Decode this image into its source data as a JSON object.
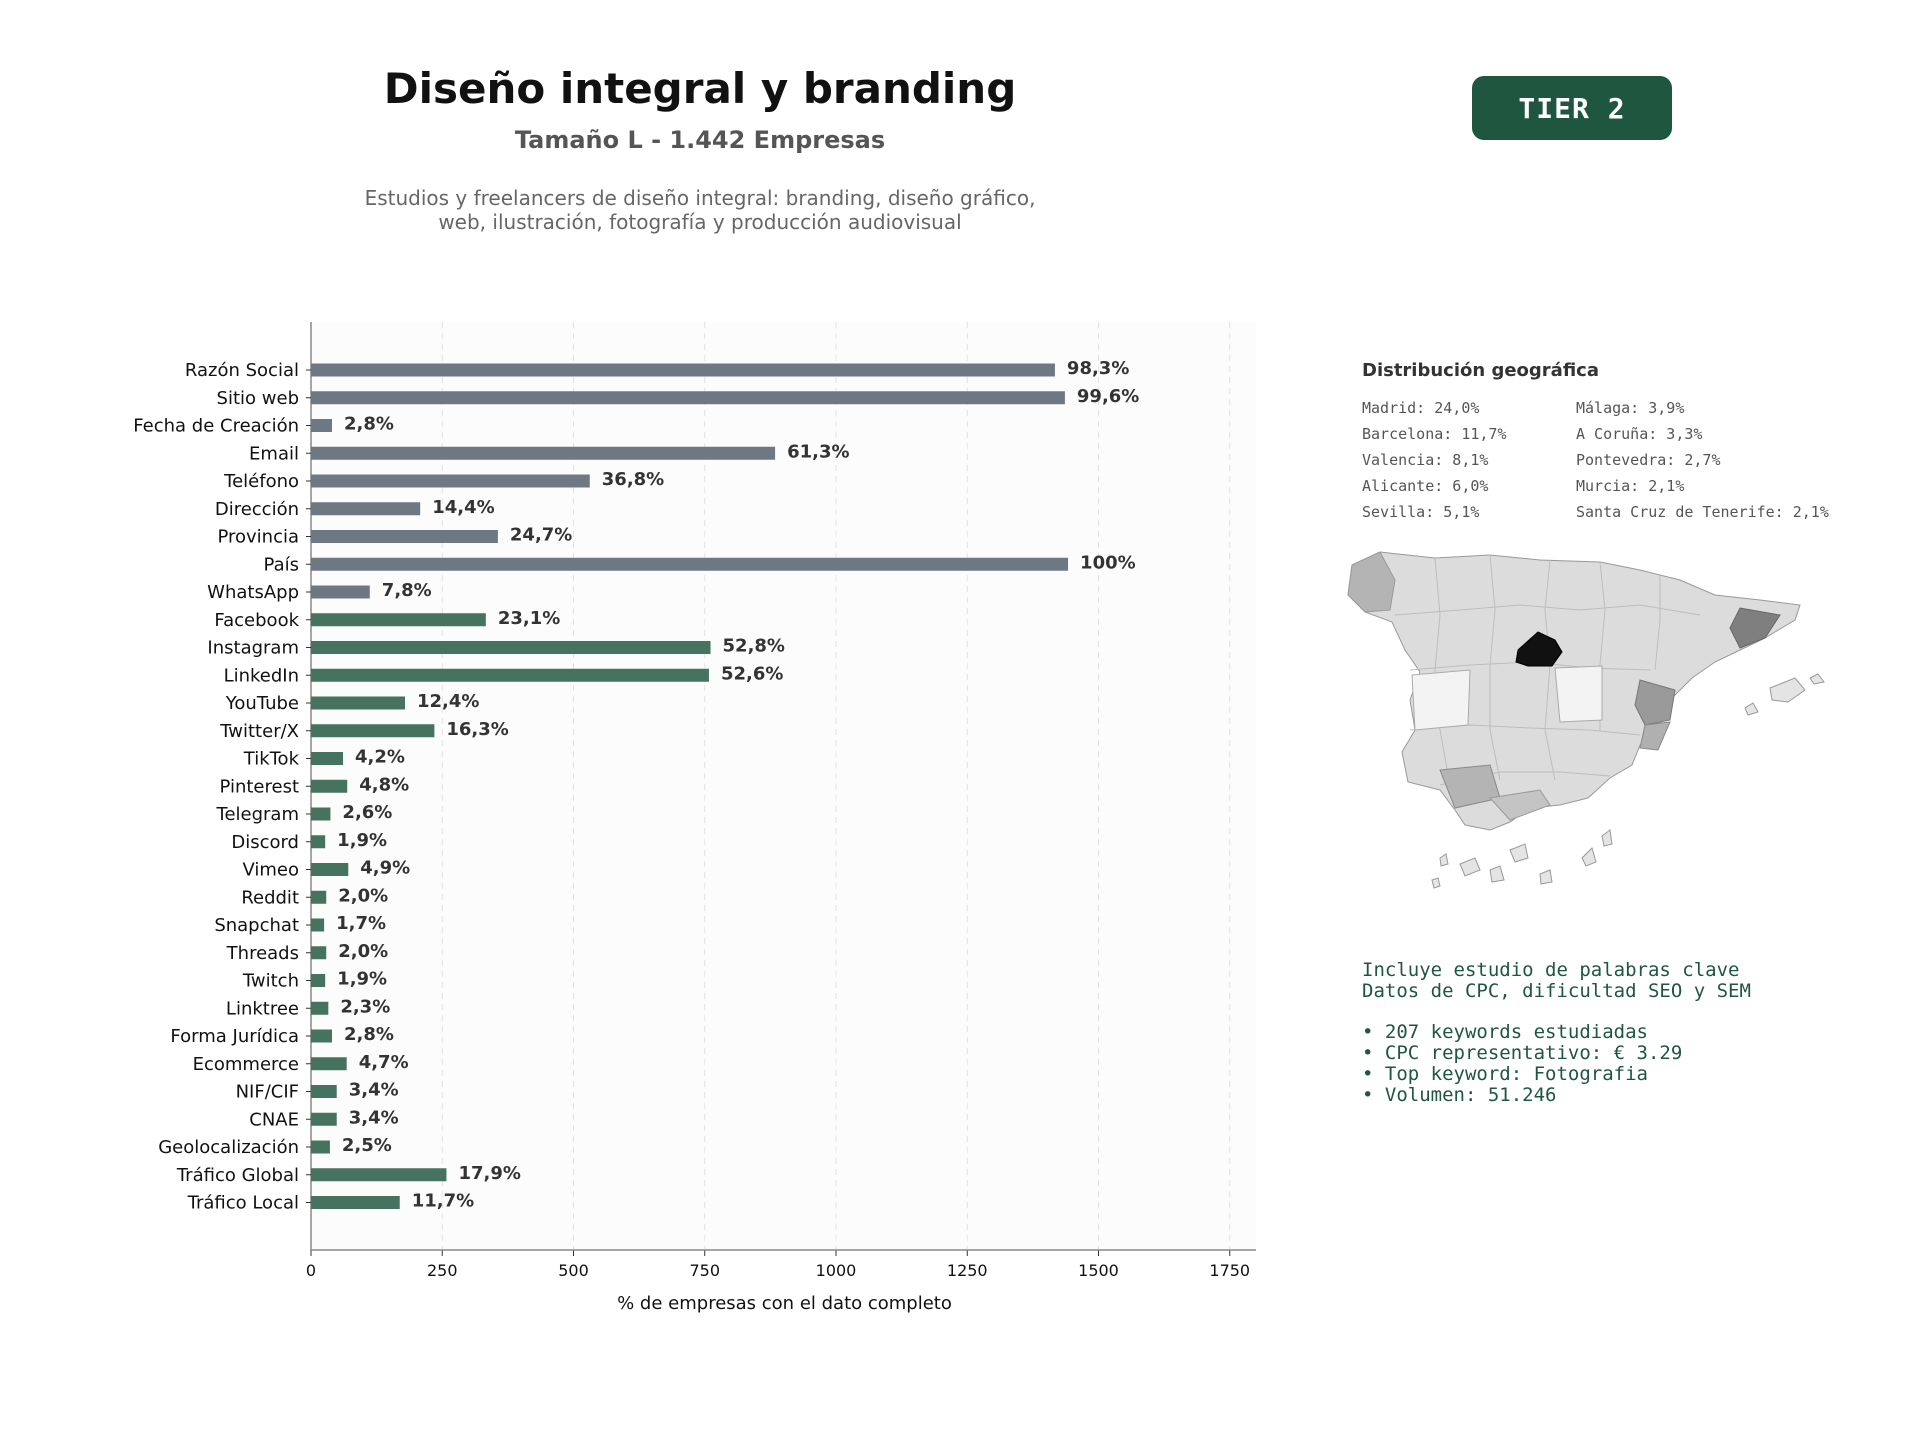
{
  "header": {
    "title": "Diseño integral y branding",
    "subtitle": "Tamaño L - 1.442 Empresas",
    "description_line1": "Estudios y freelancers de diseño integral: branding, diseño gráfico,",
    "description_line2": "web, ilustración, fotografía y producción audiovisual",
    "tier": "TIER 2"
  },
  "colors": {
    "gray_bar": "#6e7883",
    "green_bar": "#46735f",
    "accent": "#1f5640",
    "madrid": "#111111"
  },
  "geo": {
    "title": "Distribución geográfica",
    "items": [
      "Madrid: 24,0%",
      "Málaga: 3,9%",
      "Barcelona: 11,7%",
      "A Coruña: 3,3%",
      "Valencia: 8,1%",
      "Pontevedra: 2,7%",
      "Alicante: 6,0%",
      "Murcia: 2,1%",
      "Sevilla: 5,1%",
      "Santa Cruz de Tenerife: 2,1%"
    ]
  },
  "keywords": {
    "line1": "Incluye estudio de palabras clave",
    "line2": "Datos de CPC, dificultad SEO y SEM",
    "bullets": [
      "• 207 keywords estudiadas",
      "• CPC representativo: € 3.29",
      "• Top keyword: Fotografia",
      "• Volumen: 51.246"
    ]
  },
  "chart_data": {
    "type": "bar",
    "orientation": "horizontal",
    "xlabel": "% de empresas con el dato completo",
    "xlim": [
      0,
      1800
    ],
    "xticks": [
      0,
      250,
      500,
      750,
      1000,
      1250,
      1500,
      1750
    ],
    "grid": "vertical dashed",
    "categories": [
      "Razón Social",
      "Sitio web",
      "Fecha de Creación",
      "Email",
      "Teléfono",
      "Dirección",
      "Provincia",
      "País",
      "WhatsApp",
      "Facebook",
      "Instagram",
      "LinkedIn",
      "YouTube",
      "Twitter/X",
      "TikTok",
      "Pinterest",
      "Telegram",
      "Discord",
      "Vimeo",
      "Reddit",
      "Snapchat",
      "Threads",
      "Twitch",
      "Linktree",
      "Forma Jurídica",
      "Ecommerce",
      "NIF/CIF",
      "CNAE",
      "Geolocalización",
      "Tráfico Global",
      "Tráfico Local"
    ],
    "values": [
      1417,
      1436,
      40,
      884,
      531,
      208,
      356,
      1442,
      112,
      333,
      761,
      758,
      179,
      235,
      61,
      69,
      37,
      27,
      71,
      29,
      25,
      29,
      27,
      33,
      40,
      68,
      49,
      49,
      36,
      258,
      169
    ],
    "labels": [
      "98,3%",
      "99,6%",
      "2,8%",
      "61,3%",
      "36,8%",
      "14,4%",
      "24,7%",
      "100%",
      "7,8%",
      "23,1%",
      "52,8%",
      "52,6%",
      "12,4%",
      "16,3%",
      "4,2%",
      "4,8%",
      "2,6%",
      "1,9%",
      "4,9%",
      "2,0%",
      "1,7%",
      "2,0%",
      "1,9%",
      "2,3%",
      "2,8%",
      "4,7%",
      "3,4%",
      "3,4%",
      "2,5%",
      "17,9%",
      "11,7%"
    ],
    "groups": [
      "gray",
      "gray",
      "gray",
      "gray",
      "gray",
      "gray",
      "gray",
      "gray",
      "gray",
      "green",
      "green",
      "green",
      "green",
      "green",
      "green",
      "green",
      "green",
      "green",
      "green",
      "green",
      "green",
      "green",
      "green",
      "green",
      "green",
      "green",
      "green",
      "green",
      "green",
      "green",
      "green"
    ]
  }
}
